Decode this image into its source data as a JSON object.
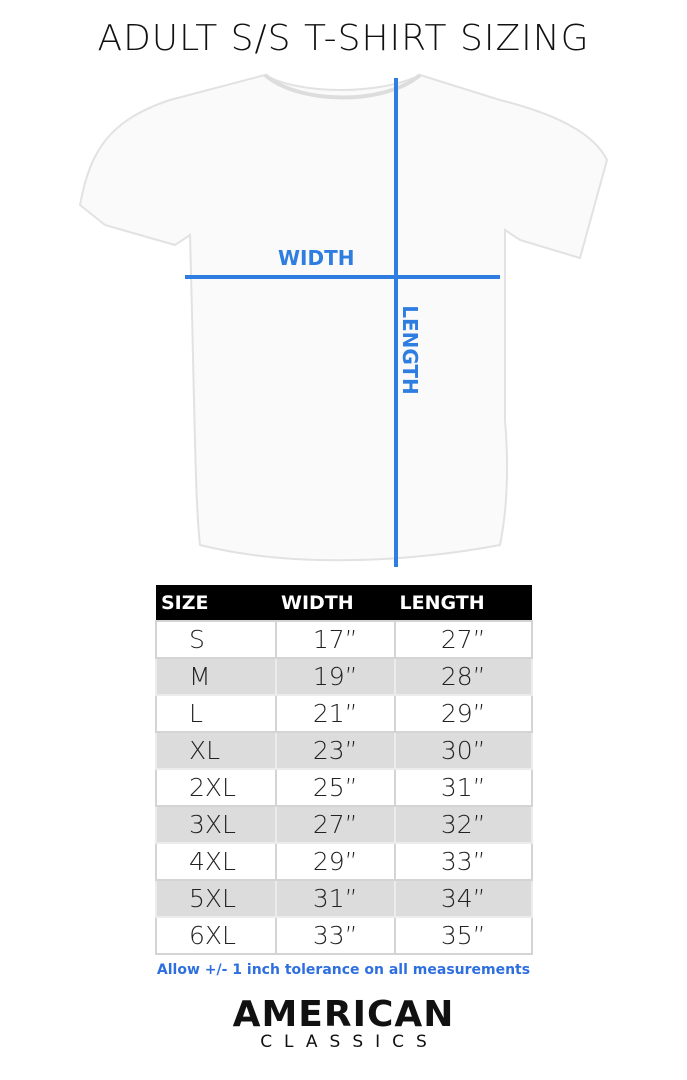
{
  "title": "ADULT S/S T-SHIRT SIZING",
  "diagram": {
    "width_label": "WIDTH",
    "length_label": "LENGTH",
    "line_color": "#2e7de0"
  },
  "table": {
    "headers": [
      "SIZE",
      "WIDTH",
      "LENGTH"
    ],
    "rows": [
      {
        "size": "S",
        "width": "17”",
        "length": "27”"
      },
      {
        "size": "M",
        "width": "19”",
        "length": "28”"
      },
      {
        "size": "L",
        "width": "21”",
        "length": "29”"
      },
      {
        "size": "XL",
        "width": "23”",
        "length": "30”"
      },
      {
        "size": "2XL",
        "width": "25”",
        "length": "31”"
      },
      {
        "size": "3XL",
        "width": "27”",
        "length": "32”"
      },
      {
        "size": "4XL",
        "width": "29”",
        "length": "33”"
      },
      {
        "size": "5XL",
        "width": "31”",
        "length": "34”"
      },
      {
        "size": "6XL",
        "width": "33”",
        "length": "35”"
      }
    ]
  },
  "note": "Allow +/- 1 inch tolerance on all measurements",
  "logo": {
    "line1": "AMERICAN",
    "line2": "CLASSICS"
  }
}
